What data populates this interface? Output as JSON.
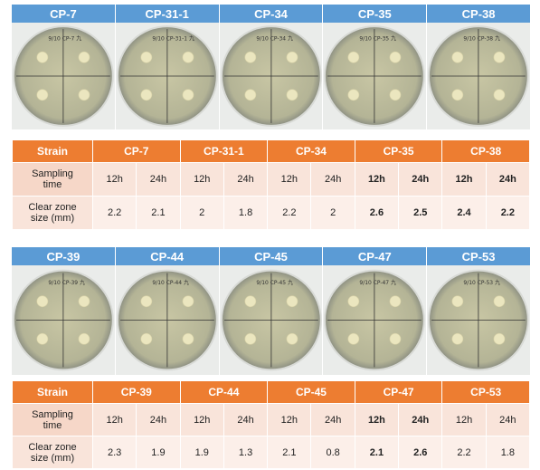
{
  "panel1": {
    "strains": [
      "CP-7",
      "CP-31-1",
      "CP-34",
      "CP-35",
      "CP-38"
    ],
    "plate_labels": [
      "9/10 CP-7 九",
      "9/10 CP-31-1 九",
      "9/10 CP-34 九",
      "9/10 CP-35 九",
      "9/10 CP-38 九"
    ],
    "table": {
      "strain_label": "Strain",
      "sampling_label_1": "Sampling",
      "sampling_label_2": "time",
      "zone_label_1": "Clear zone",
      "zone_label_2": "size (mm)",
      "times": [
        "12h",
        "24h",
        "12h",
        "24h",
        "12h",
        "24h",
        "12h",
        "24h",
        "12h",
        "24h"
      ],
      "values": [
        "2.2",
        "2.1",
        "2",
        "1.8",
        "2.2",
        "2",
        "2.6",
        "2.5",
        "2.4",
        "2.2"
      ],
      "bold": [
        false,
        false,
        false,
        false,
        false,
        false,
        true,
        true,
        true,
        true
      ]
    }
  },
  "panel2": {
    "strains": [
      "CP-39",
      "CP-44",
      "CP-45",
      "CP-47",
      "CP-53"
    ],
    "plate_labels": [
      "9/10 CP-39 九",
      "9/10 CP-44 九",
      "9/10 CP-45 九",
      "9/10 CP-47 九",
      "9/10 CP-53 九"
    ],
    "table": {
      "strain_label": "Strain",
      "sampling_label_1": "Sampling",
      "sampling_label_2": "time",
      "zone_label_1": "Clear zone",
      "zone_label_2": "size (mm)",
      "times": [
        "12h",
        "24h",
        "12h",
        "24h",
        "12h",
        "24h",
        "12h",
        "24h",
        "12h",
        "24h"
      ],
      "values": [
        "2.3",
        "1.9",
        "1.9",
        "1.3",
        "2.1",
        "0.8",
        "2.1",
        "2.6",
        "2.2",
        "1.8"
      ],
      "bold": [
        false,
        false,
        false,
        false,
        false,
        false,
        true,
        true,
        false,
        false
      ]
    }
  },
  "colors": {
    "header_blue": "#5b9bd5",
    "header_orange": "#ed7d31",
    "cell_light": "#f9e4da",
    "cell_label": "#f6d7c8"
  }
}
